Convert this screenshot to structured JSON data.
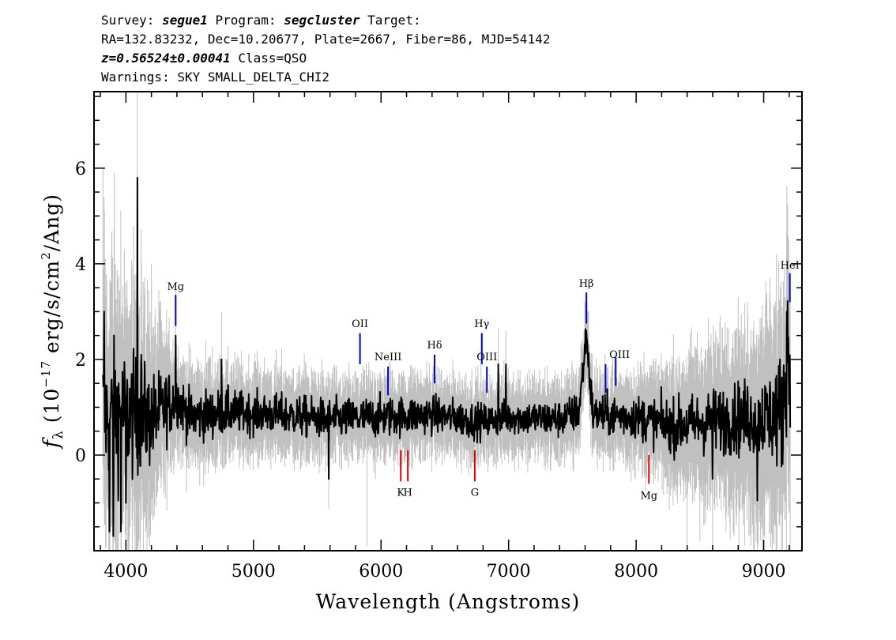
{
  "header": {
    "line1": [
      {
        "text": "Survey: ",
        "italic": false
      },
      {
        "text": "segue1",
        "italic": true
      },
      {
        "text": " Program: ",
        "italic": false
      },
      {
        "text": "segcluster",
        "italic": true
      },
      {
        "text": " Target:",
        "italic": false
      }
    ],
    "line2": "RA=132.83232, Dec=10.20677, Plate=2667, Fiber=86, MJD=54142",
    "line3": [
      {
        "text": "z=0.56524±0.00041",
        "italic": true
      },
      {
        "text": " Class=QSO",
        "italic": false
      }
    ],
    "line4": "Warnings: SKY SMALL_DELTA_CHI2"
  },
  "chart_data": {
    "type": "line",
    "xlabel": "Wavelength (Angstroms)",
    "ylabel": "f_λ (10^-17 erg/s/cm^2/Ang)",
    "ylabel_parts": {
      "f": "f",
      "lambda": "λ",
      "open": " (10",
      "exp1": "−17",
      "mid": " erg/s/cm",
      "exp2": "2",
      "close": "/Ang)"
    },
    "xlim": [
      3750,
      9300
    ],
    "ylim": [
      -2,
      7.6
    ],
    "x_ticks": [
      4000,
      5000,
      6000,
      7000,
      8000,
      9000
    ],
    "x_tick_labels": [
      "4000",
      "5000",
      "6000",
      "7000",
      "8000",
      "9000"
    ],
    "y_ticks": [
      0,
      2,
      4,
      6
    ],
    "y_tick_labels": [
      "0",
      "2",
      "4",
      "6"
    ],
    "grid": false,
    "series": [
      {
        "role": "flux",
        "color": "#000000",
        "x_start": 3820,
        "x_end": 9210,
        "baseline": [
          [
            3820,
            0.9
          ],
          [
            4000,
            0.85
          ],
          [
            4200,
            0.75
          ],
          [
            4400,
            1.2
          ],
          [
            4500,
            0.8
          ],
          [
            4800,
            0.9
          ],
          [
            5200,
            0.85
          ],
          [
            5600,
            0.75
          ],
          [
            6000,
            0.8
          ],
          [
            6400,
            0.85
          ],
          [
            6800,
            0.7
          ],
          [
            7000,
            0.8
          ],
          [
            7400,
            0.75
          ],
          [
            7550,
            0.9
          ],
          [
            7610,
            2.5
          ],
          [
            7660,
            0.85
          ],
          [
            8000,
            0.8
          ],
          [
            8300,
            0.6
          ],
          [
            8700,
            0.75
          ],
          [
            9000,
            0.8
          ],
          [
            9150,
            0.9
          ],
          [
            9190,
            2.4
          ],
          [
            9210,
            0.9
          ]
        ],
        "noise_envelope": [
          [
            3820,
            1.1
          ],
          [
            4100,
            0.85
          ],
          [
            4400,
            0.4
          ],
          [
            5000,
            0.3
          ],
          [
            6000,
            0.3
          ],
          [
            7000,
            0.25
          ],
          [
            8000,
            0.32
          ],
          [
            8500,
            0.45
          ],
          [
            9000,
            0.6
          ],
          [
            9210,
            1.0
          ]
        ],
        "spikes": [
          [
            3830,
            3.0
          ],
          [
            3870,
            -1.6
          ],
          [
            3900,
            -1.7
          ],
          [
            3960,
            -1.6
          ],
          [
            4000,
            -1.0
          ],
          [
            4090,
            5.8
          ],
          [
            4120,
            2.1
          ],
          [
            4390,
            2.5
          ],
          [
            4750,
            2.0
          ],
          [
            5590,
            -0.5
          ],
          [
            6920,
            1.9
          ],
          [
            6980,
            1.9
          ],
          [
            7610,
            2.6
          ],
          [
            8600,
            -0.5
          ],
          [
            8950,
            -0.95
          ],
          [
            9180,
            3.0
          ]
        ]
      },
      {
        "role": "error",
        "color": "#c0c0c0",
        "x_start": 3820,
        "x_end": 9210,
        "envelope": [
          [
            3820,
            3.2
          ],
          [
            4000,
            2.4
          ],
          [
            4100,
            2.6
          ],
          [
            4400,
            1.0
          ],
          [
            5000,
            0.85
          ],
          [
            6000,
            0.8
          ],
          [
            7000,
            0.75
          ],
          [
            8000,
            0.9
          ],
          [
            8400,
            1.4
          ],
          [
            8800,
            1.8
          ],
          [
            9000,
            2.1
          ],
          [
            9210,
            2.6
          ]
        ],
        "spikes": [
          [
            3820,
            6.0
          ],
          [
            3910,
            5.9
          ],
          [
            3960,
            5.1
          ],
          [
            4090,
            7.6
          ],
          [
            4200,
            4.0
          ],
          [
            5890,
            -1.9
          ],
          [
            8400,
            -1.9
          ],
          [
            8500,
            -1.8
          ],
          [
            8850,
            -1.9
          ],
          [
            8900,
            -1.9
          ],
          [
            9100,
            4.2
          ],
          [
            9180,
            4.6
          ]
        ]
      }
    ],
    "emission_lines": [
      {
        "label": "Mg",
        "x": 4390,
        "y_bottom": 2.7,
        "y_top": 3.35,
        "color": "#0000cc",
        "label_y": 3.45
      },
      {
        "label": "OII",
        "x": 5835,
        "y_bottom": 1.9,
        "y_top": 2.55,
        "color": "#0000cc",
        "label_y": 2.68
      },
      {
        "label": "NeIII",
        "x": 6055,
        "y_bottom": 1.25,
        "y_top": 1.85,
        "color": "#0000cc",
        "label_y": 1.98
      },
      {
        "label": "Hδ",
        "x": 6420,
        "y_bottom": 1.5,
        "y_top": 2.1,
        "color": "#0000cc",
        "label_y": 2.23
      },
      {
        "label": "Hγ",
        "x": 6790,
        "y_bottom": 1.9,
        "y_top": 2.55,
        "color": "#0000cc",
        "label_y": 2.68
      },
      {
        "label": "OIII",
        "x": 6830,
        "y_bottom": 1.3,
        "y_top": 1.85,
        "color": "#0000cc",
        "label_y": 1.98
      },
      {
        "label": "Hβ",
        "x": 7610,
        "y_bottom": 2.75,
        "y_top": 3.4,
        "color": "#0000cc",
        "label_y": 3.52
      },
      {
        "label": "OIII",
        "x": 7760,
        "y_bottom": 1.3,
        "y_top": 1.9,
        "color": "#0000cc",
        "label_y": 2.03,
        "label_x": 7870
      },
      {
        "label": "OIII",
        "x": 7840,
        "y_bottom": 1.45,
        "y_top": 2.05,
        "color": "#0000cc",
        "label_y": null
      },
      {
        "label": "HeI",
        "x": 9205,
        "y_bottom": 3.2,
        "y_top": 3.8,
        "color": "#0000cc",
        "label_y": 3.9
      }
    ],
    "absorption_lines": [
      {
        "label": "K",
        "x": 6155,
        "y_top": 0.1,
        "y_bottom": -0.55,
        "color": "#dd0000",
        "label_y": -0.85
      },
      {
        "label": "H",
        "x": 6210,
        "y_top": 0.1,
        "y_bottom": -0.55,
        "color": "#dd0000",
        "label_y": -0.85
      },
      {
        "label": "G",
        "x": 6735,
        "y_top": 0.1,
        "y_bottom": -0.55,
        "color": "#dd0000",
        "label_y": -0.85
      },
      {
        "label": "Mg",
        "x": 8100,
        "y_top": 0.0,
        "y_bottom": -0.6,
        "color": "#dd0000",
        "label_y": -0.92
      }
    ]
  }
}
